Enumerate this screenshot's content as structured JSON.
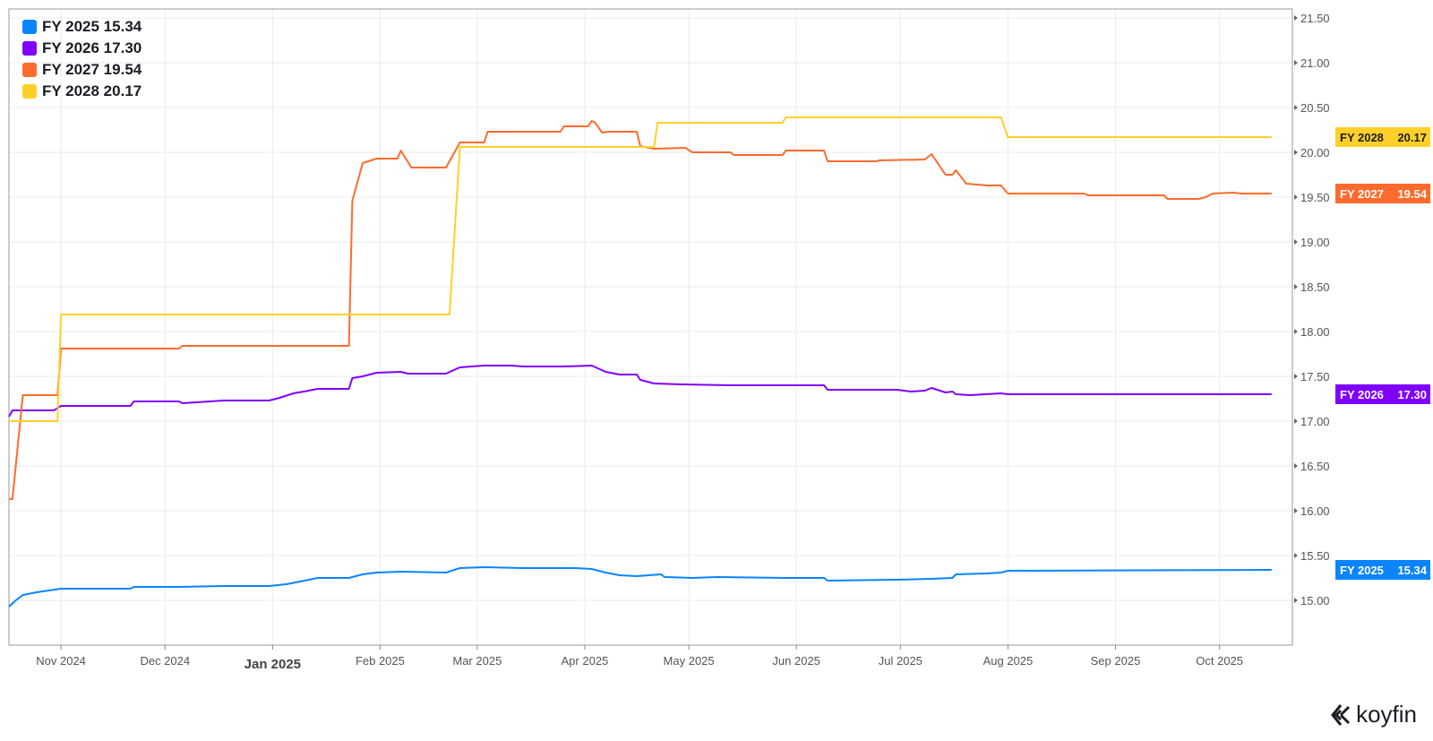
{
  "chart_data": {
    "type": "line",
    "title": "",
    "xlabel": "",
    "ylabel": "",
    "xlim": [
      "2024-10-17",
      "2025-10-22"
    ],
    "ylim": [
      14.5,
      21.6
    ],
    "y_axis_position": "right",
    "y_ticks": [
      "15.00",
      "15.50",
      "16.00",
      "16.50",
      "17.00",
      "17.50",
      "18.00",
      "18.50",
      "19.00",
      "19.50",
      "20.00",
      "20.50",
      "21.00",
      "21.50"
    ],
    "x_ticks": [
      {
        "date": "2024-11-01",
        "label": "Nov 2024",
        "bold": false
      },
      {
        "date": "2024-12-01",
        "label": "Dec 2024",
        "bold": false
      },
      {
        "date": "2025-01-01",
        "label": "Jan 2025",
        "bold": true
      },
      {
        "date": "2025-02-01",
        "label": "Feb 2025",
        "bold": false
      },
      {
        "date": "2025-03-01",
        "label": "Mar 2025",
        "bold": false
      },
      {
        "date": "2025-04-01",
        "label": "Apr 2025",
        "bold": false
      },
      {
        "date": "2025-05-01",
        "label": "May 2025",
        "bold": false
      },
      {
        "date": "2025-06-01",
        "label": "Jun 2025",
        "bold": false
      },
      {
        "date": "2025-07-01",
        "label": "Jul 2025",
        "bold": false
      },
      {
        "date": "2025-08-01",
        "label": "Aug 2025",
        "bold": false
      },
      {
        "date": "2025-09-01",
        "label": "Sep 2025",
        "bold": false
      },
      {
        "date": "2025-10-01",
        "label": "Oct 2025",
        "bold": false
      }
    ],
    "grid": true,
    "legend_position": "top-left",
    "series": [
      {
        "name": "FY 2025",
        "last": "15.34",
        "color": "#0a84ff",
        "points": [
          [
            "2024-10-17",
            14.93
          ],
          [
            "2024-10-19",
            15.0
          ],
          [
            "2024-10-21",
            15.06
          ],
          [
            "2024-10-25",
            15.09
          ],
          [
            "2024-11-01",
            15.13
          ],
          [
            "2024-11-21",
            15.13
          ],
          [
            "2024-11-22",
            15.15
          ],
          [
            "2024-12-05",
            15.15
          ],
          [
            "2024-12-18",
            15.16
          ],
          [
            "2024-12-31",
            15.16
          ],
          [
            "2025-01-05",
            15.18
          ],
          [
            "2025-01-09",
            15.21
          ],
          [
            "2025-01-14",
            15.25
          ],
          [
            "2025-01-23",
            15.25
          ],
          [
            "2025-01-27",
            15.29
          ],
          [
            "2025-01-31",
            15.31
          ],
          [
            "2025-02-07",
            15.32
          ],
          [
            "2025-02-20",
            15.31
          ],
          [
            "2025-02-24",
            15.36
          ],
          [
            "2025-03-03",
            15.37
          ],
          [
            "2025-03-14",
            15.36
          ],
          [
            "2025-03-29",
            15.36
          ],
          [
            "2025-04-03",
            15.35
          ],
          [
            "2025-04-07",
            15.31
          ],
          [
            "2025-04-11",
            15.28
          ],
          [
            "2025-04-16",
            15.27
          ],
          [
            "2025-04-23",
            15.29
          ],
          [
            "2025-04-24",
            15.26
          ],
          [
            "2025-05-02",
            15.25
          ],
          [
            "2025-05-09",
            15.26
          ],
          [
            "2025-05-29",
            15.25
          ],
          [
            "2025-06-09",
            15.25
          ],
          [
            "2025-06-10",
            15.22
          ],
          [
            "2025-06-30",
            15.23
          ],
          [
            "2025-07-10",
            15.24
          ],
          [
            "2025-07-16",
            15.25
          ],
          [
            "2025-07-17",
            15.29
          ],
          [
            "2025-07-26",
            15.3
          ],
          [
            "2025-07-30",
            15.31
          ],
          [
            "2025-08-01",
            15.33
          ],
          [
            "2025-10-16",
            15.34
          ]
        ]
      },
      {
        "name": "FY 2026",
        "last": "17.30",
        "color": "#8000ff",
        "points": [
          [
            "2024-10-17",
            17.05
          ],
          [
            "2024-10-18",
            17.12
          ],
          [
            "2024-10-30",
            17.12
          ],
          [
            "2024-11-01",
            17.17
          ],
          [
            "2024-11-21",
            17.17
          ],
          [
            "2024-11-22",
            17.22
          ],
          [
            "2024-12-05",
            17.22
          ],
          [
            "2024-12-06",
            17.2
          ],
          [
            "2024-12-18",
            17.23
          ],
          [
            "2024-12-31",
            17.23
          ],
          [
            "2025-01-03",
            17.26
          ],
          [
            "2025-01-07",
            17.31
          ],
          [
            "2025-01-10",
            17.33
          ],
          [
            "2025-01-14",
            17.36
          ],
          [
            "2025-01-23",
            17.36
          ],
          [
            "2025-01-24",
            17.48
          ],
          [
            "2025-01-27",
            17.5
          ],
          [
            "2025-01-31",
            17.54
          ],
          [
            "2025-02-07",
            17.55
          ],
          [
            "2025-02-09",
            17.53
          ],
          [
            "2025-02-20",
            17.53
          ],
          [
            "2025-02-24",
            17.6
          ],
          [
            "2025-03-03",
            17.62
          ],
          [
            "2025-03-11",
            17.62
          ],
          [
            "2025-03-14",
            17.61
          ],
          [
            "2025-03-26",
            17.61
          ],
          [
            "2025-04-03",
            17.62
          ],
          [
            "2025-04-07",
            17.55
          ],
          [
            "2025-04-11",
            17.52
          ],
          [
            "2025-04-16",
            17.52
          ],
          [
            "2025-04-17",
            17.46
          ],
          [
            "2025-04-21",
            17.42
          ],
          [
            "2025-04-29",
            17.41
          ],
          [
            "2025-05-13",
            17.4
          ],
          [
            "2025-06-09",
            17.4
          ],
          [
            "2025-06-10",
            17.35
          ],
          [
            "2025-06-30",
            17.35
          ],
          [
            "2025-07-04",
            17.33
          ],
          [
            "2025-07-08",
            17.34
          ],
          [
            "2025-07-10",
            17.37
          ],
          [
            "2025-07-14",
            17.32
          ],
          [
            "2025-07-16",
            17.33
          ],
          [
            "2025-07-17",
            17.3
          ],
          [
            "2025-07-21",
            17.29
          ],
          [
            "2025-07-30",
            17.31
          ],
          [
            "2025-08-01",
            17.3
          ],
          [
            "2025-10-16",
            17.3
          ]
        ]
      },
      {
        "name": "FY 2027",
        "last": "19.54",
        "color": "#ff6b2c",
        "points": [
          [
            "2024-10-17",
            16.13
          ],
          [
            "2024-10-18",
            16.13
          ],
          [
            "2024-10-21",
            17.29
          ],
          [
            "2024-10-31",
            17.29
          ],
          [
            "2024-11-01",
            17.81
          ],
          [
            "2024-12-05",
            17.81
          ],
          [
            "2024-12-06",
            17.84
          ],
          [
            "2025-01-23",
            17.84
          ],
          [
            "2025-01-24",
            19.46
          ],
          [
            "2025-01-27",
            19.88
          ],
          [
            "2025-01-31",
            19.93
          ],
          [
            "2025-02-06",
            19.93
          ],
          [
            "2025-02-07",
            20.02
          ],
          [
            "2025-02-10",
            19.83
          ],
          [
            "2025-02-20",
            19.83
          ],
          [
            "2025-02-24",
            20.11
          ],
          [
            "2025-03-03",
            20.11
          ],
          [
            "2025-03-04",
            20.23
          ],
          [
            "2025-03-25",
            20.23
          ],
          [
            "2025-03-26",
            20.29
          ],
          [
            "2025-04-02",
            20.29
          ],
          [
            "2025-04-03",
            20.35
          ],
          [
            "2025-04-04",
            20.33
          ],
          [
            "2025-04-06",
            20.22
          ],
          [
            "2025-04-08",
            20.23
          ],
          [
            "2025-04-16",
            20.23
          ],
          [
            "2025-04-17",
            20.07
          ],
          [
            "2025-04-21",
            20.04
          ],
          [
            "2025-04-30",
            20.05
          ],
          [
            "2025-05-02",
            20.0
          ],
          [
            "2025-05-13",
            20.0
          ],
          [
            "2025-05-14",
            19.97
          ],
          [
            "2025-05-28",
            19.97
          ],
          [
            "2025-05-29",
            20.02
          ],
          [
            "2025-06-09",
            20.02
          ],
          [
            "2025-06-10",
            19.9
          ],
          [
            "2025-06-24",
            19.9
          ],
          [
            "2025-06-25",
            19.91
          ],
          [
            "2025-07-08",
            19.92
          ],
          [
            "2025-07-10",
            19.98
          ],
          [
            "2025-07-14",
            19.75
          ],
          [
            "2025-07-16",
            19.75
          ],
          [
            "2025-07-17",
            19.8
          ],
          [
            "2025-07-20",
            19.65
          ],
          [
            "2025-07-26",
            19.63
          ],
          [
            "2025-07-30",
            19.63
          ],
          [
            "2025-08-01",
            19.54
          ],
          [
            "2025-08-23",
            19.54
          ],
          [
            "2025-08-24",
            19.52
          ],
          [
            "2025-09-15",
            19.52
          ],
          [
            "2025-09-16",
            19.48
          ],
          [
            "2025-09-25",
            19.48
          ],
          [
            "2025-09-27",
            19.5
          ],
          [
            "2025-09-29",
            19.54
          ],
          [
            "2025-10-05",
            19.55
          ],
          [
            "2025-10-07",
            19.54
          ],
          [
            "2025-10-16",
            19.54
          ]
        ]
      },
      {
        "name": "FY 2028",
        "last": "20.17",
        "color": "#ffd02a",
        "points": [
          [
            "2024-10-17",
            17.0
          ],
          [
            "2024-10-31",
            17.0
          ],
          [
            "2024-11-01",
            18.19
          ],
          [
            "2025-02-21",
            18.19
          ],
          [
            "2025-02-24",
            20.06
          ],
          [
            "2025-04-21",
            20.06
          ],
          [
            "2025-04-22",
            20.33
          ],
          [
            "2025-05-28",
            20.33
          ],
          [
            "2025-05-29",
            20.39
          ],
          [
            "2025-07-30",
            20.39
          ],
          [
            "2025-08-01",
            20.17
          ],
          [
            "2025-10-16",
            20.17
          ]
        ]
      }
    ]
  },
  "legend": [
    {
      "label": "FY 2025 15.34",
      "color": "#0a84ff"
    },
    {
      "label": "FY 2026 17.30",
      "color": "#8000ff"
    },
    {
      "label": "FY 2027 19.54",
      "color": "#ff6b2c"
    },
    {
      "label": "FY 2028 20.17",
      "color": "#ffd02a"
    }
  ],
  "logo": {
    "text": "koyfin"
  }
}
